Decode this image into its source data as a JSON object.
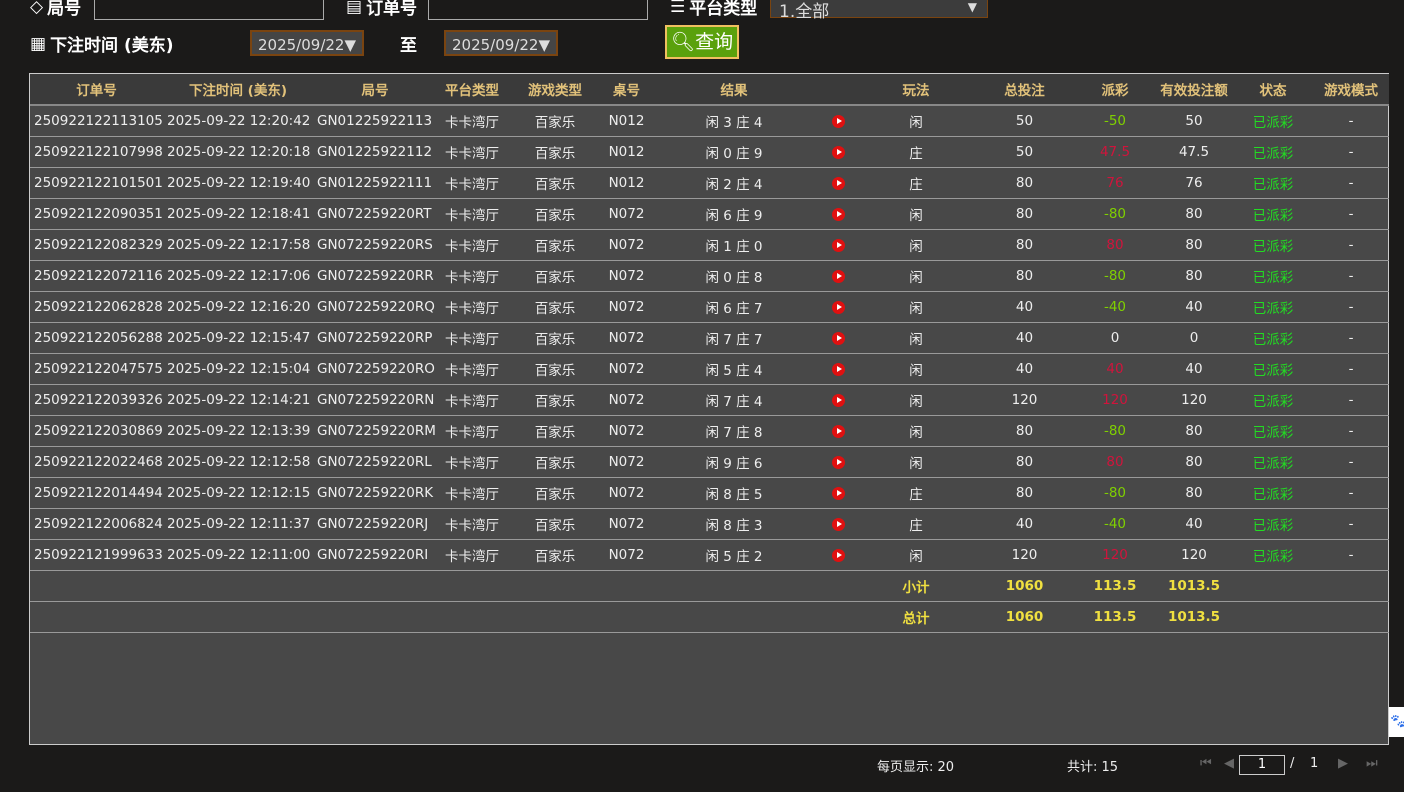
{
  "filters": {
    "round_label": "局号",
    "order_label": "订单号",
    "platform_label": "平台类型",
    "platform_value": "1.全部",
    "time_label": "下注时间 (美东)",
    "date_from": "2025/09/22▼",
    "to_label": "至",
    "date_to": "2025/09/22▼",
    "query_label": "查询"
  },
  "columns": [
    "订单号",
    "下注时间 (美东)",
    "局号",
    "平台类型",
    "游戏类型",
    "桌号",
    "结果",
    "",
    "玩法",
    "总投注",
    "派彩",
    "有效投注额",
    "状态",
    "游戏模式"
  ],
  "colors": {
    "payout_negative": "#7fd000",
    "payout_positive": "#d0143c",
    "status": "#22dd22",
    "summary": "#f0e040"
  },
  "rows": [
    [
      "250922122113105",
      "2025-09-22 12:20:42",
      "GN01225922113",
      "卡卡湾厅",
      "百家乐",
      "N012",
      "闲 3 庄 4",
      "闲",
      "50",
      "-50",
      "50",
      "已派彩",
      "-"
    ],
    [
      "250922122107998",
      "2025-09-22 12:20:18",
      "GN01225922112",
      "卡卡湾厅",
      "百家乐",
      "N012",
      "闲 0 庄 9",
      "庄",
      "50",
      "47.5",
      "47.5",
      "已派彩",
      "-"
    ],
    [
      "250922122101501",
      "2025-09-22 12:19:40",
      "GN01225922111",
      "卡卡湾厅",
      "百家乐",
      "N012",
      "闲 2 庄 4",
      "庄",
      "80",
      "76",
      "76",
      "已派彩",
      "-"
    ],
    [
      "250922122090351",
      "2025-09-22 12:18:41",
      "GN072259220RT",
      "卡卡湾厅",
      "百家乐",
      "N072",
      "闲 6 庄 9",
      "闲",
      "80",
      "-80",
      "80",
      "已派彩",
      "-"
    ],
    [
      "250922122082329",
      "2025-09-22 12:17:58",
      "GN072259220RS",
      "卡卡湾厅",
      "百家乐",
      "N072",
      "闲 1 庄 0",
      "闲",
      "80",
      "80",
      "80",
      "已派彩",
      "-"
    ],
    [
      "250922122072116",
      "2025-09-22 12:17:06",
      "GN072259220RR",
      "卡卡湾厅",
      "百家乐",
      "N072",
      "闲 0 庄 8",
      "闲",
      "80",
      "-80",
      "80",
      "已派彩",
      "-"
    ],
    [
      "250922122062828",
      "2025-09-22 12:16:20",
      "GN072259220RQ",
      "卡卡湾厅",
      "百家乐",
      "N072",
      "闲 6 庄 7",
      "闲",
      "40",
      "-40",
      "40",
      "已派彩",
      "-"
    ],
    [
      "250922122056288",
      "2025-09-22 12:15:47",
      "GN072259220RP",
      "卡卡湾厅",
      "百家乐",
      "N072",
      "闲 7 庄 7",
      "闲",
      "40",
      "0",
      "0",
      "已派彩",
      "-"
    ],
    [
      "250922122047575",
      "2025-09-22 12:15:04",
      "GN072259220RO",
      "卡卡湾厅",
      "百家乐",
      "N072",
      "闲 5 庄 4",
      "闲",
      "40",
      "40",
      "40",
      "已派彩",
      "-"
    ],
    [
      "250922122039326",
      "2025-09-22 12:14:21",
      "GN072259220RN",
      "卡卡湾厅",
      "百家乐",
      "N072",
      "闲 7 庄 4",
      "闲",
      "120",
      "120",
      "120",
      "已派彩",
      "-"
    ],
    [
      "250922122030869",
      "2025-09-22 12:13:39",
      "GN072259220RM",
      "卡卡湾厅",
      "百家乐",
      "N072",
      "闲 7 庄 8",
      "闲",
      "80",
      "-80",
      "80",
      "已派彩",
      "-"
    ],
    [
      "250922122022468",
      "2025-09-22 12:12:58",
      "GN072259220RL",
      "卡卡湾厅",
      "百家乐",
      "N072",
      "闲 9 庄 6",
      "闲",
      "80",
      "80",
      "80",
      "已派彩",
      "-"
    ],
    [
      "250922122014494",
      "2025-09-22 12:12:15",
      "GN072259220RK",
      "卡卡湾厅",
      "百家乐",
      "N072",
      "闲 8 庄 5",
      "庄",
      "80",
      "-80",
      "80",
      "已派彩",
      "-"
    ],
    [
      "250922122006824",
      "2025-09-22 12:11:37",
      "GN072259220RJ",
      "卡卡湾厅",
      "百家乐",
      "N072",
      "闲 8 庄 3",
      "庄",
      "40",
      "-40",
      "40",
      "已派彩",
      "-"
    ],
    [
      "250922121999633",
      "2025-09-22 12:11:00",
      "GN072259220RI",
      "卡卡湾厅",
      "百家乐",
      "N072",
      "闲 5 庄 2",
      "闲",
      "120",
      "120",
      "120",
      "已派彩",
      "-"
    ]
  ],
  "subtotal": {
    "label": "小计",
    "total": "1060",
    "payout": "113.5",
    "valid": "1013.5"
  },
  "grandtotal": {
    "label": "总计",
    "total": "1060",
    "payout": "113.5",
    "valid": "1013.5"
  },
  "pager": {
    "per_page": "每页显示: 20",
    "count": "共计: 15",
    "page": "1",
    "sep": "/",
    "pages": "1"
  }
}
